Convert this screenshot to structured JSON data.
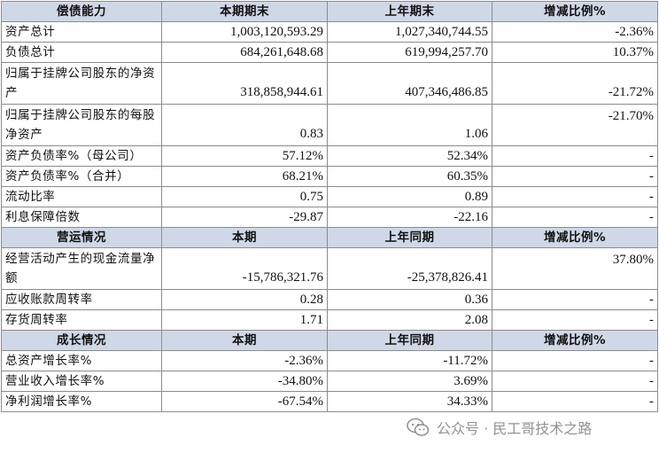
{
  "sections": [
    {
      "header": [
        "偿债能力",
        "本期期末",
        "上年期末",
        "增减比例%"
      ],
      "rows": [
        {
          "label": "资产总计",
          "current": "1,003,120,593.29",
          "previous": "1,027,340,744.55",
          "change": "-2.36%"
        },
        {
          "label": "负债总计",
          "current": "684,261,648.68",
          "previous": "619,994,257.70",
          "change": "10.37%"
        },
        {
          "label": "归属于挂牌公司股东的净资产",
          "current": "318,858,944.61",
          "previous": "407,346,486.85",
          "change": "-21.72%"
        },
        {
          "label": "归属于挂牌公司股东的每股净资产",
          "current": "0.83",
          "previous": "1.06",
          "change": "-21.70%"
        },
        {
          "label": "资产负债率%（母公司）",
          "current": "57.12%",
          "previous": "52.34%",
          "change": "-"
        },
        {
          "label": "资产负债率%（合并）",
          "current": "68.21%",
          "previous": "60.35%",
          "change": "-"
        },
        {
          "label": "流动比率",
          "current": "0.75",
          "previous": "0.89",
          "change": "-"
        },
        {
          "label": "利息保障倍数",
          "current": "-29.87",
          "previous": "-22.16",
          "change": "-"
        }
      ]
    },
    {
      "header": [
        "营运情况",
        "本期",
        "上年同期",
        "增减比例%"
      ],
      "rows": [
        {
          "label": "经营活动产生的现金流量净额",
          "current": "-15,786,321.76",
          "previous": "-25,378,826.41",
          "change": "37.80%"
        },
        {
          "label": "应收账款周转率",
          "current": "0.28",
          "previous": "0.36",
          "change": "-"
        },
        {
          "label": "存货周转率",
          "current": "1.71",
          "previous": "2.08",
          "change": "-"
        }
      ]
    },
    {
      "header": [
        "成长情况",
        "本期",
        "上年同期",
        "增减比例%"
      ],
      "rows": [
        {
          "label": "总资产增长率%",
          "current": "-2.36%",
          "previous": "-11.72%",
          "change": "-"
        },
        {
          "label": "营业收入增长率%",
          "current": "-34.80%",
          "previous": "3.69%",
          "change": "-"
        },
        {
          "label": "净利润增长率%",
          "current": "-67.54%",
          "previous": "34.33%",
          "change": "-"
        }
      ]
    }
  ],
  "watermark": {
    "text": "公众号 · 民工哥技术之路",
    "icon": "wechat-icon"
  }
}
